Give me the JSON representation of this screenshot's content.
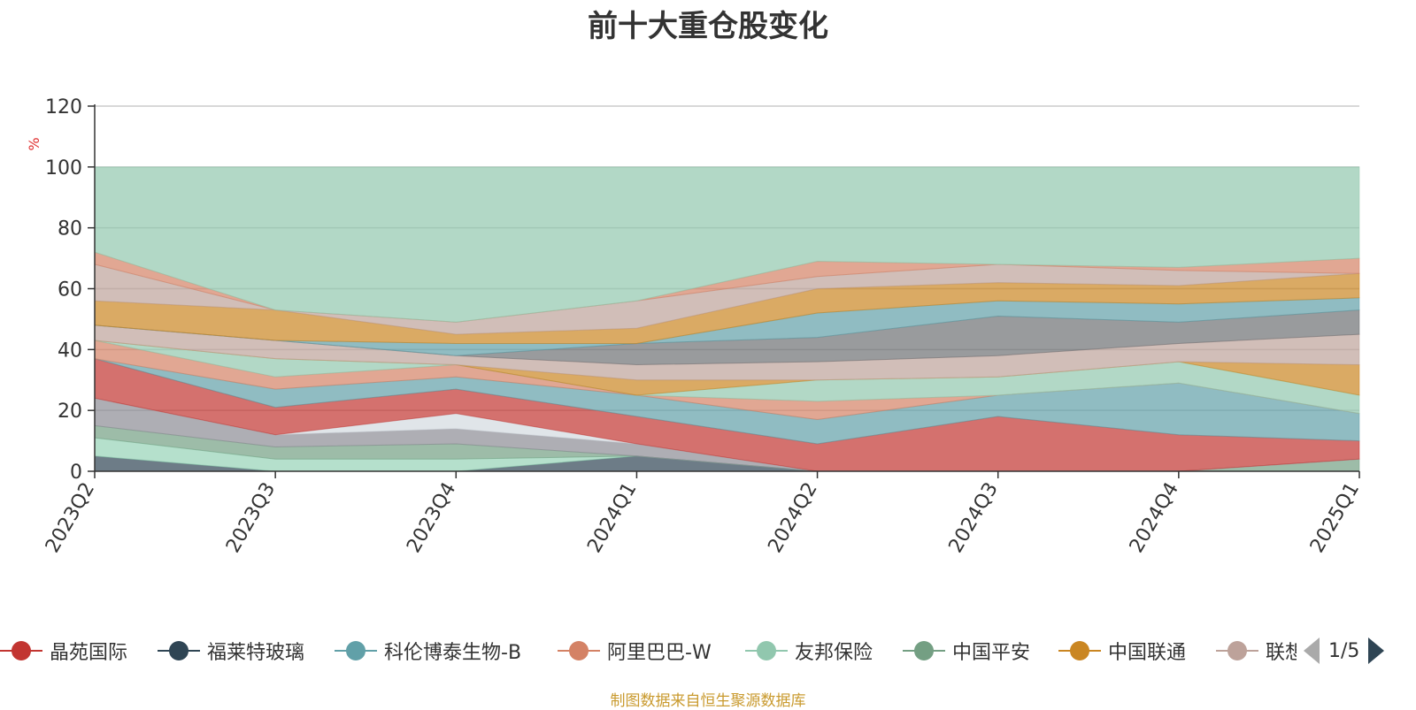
{
  "chart_data": {
    "type": "area",
    "title": "前十大重仓股变化",
    "ylabel": "%",
    "ylim": [
      0,
      120
    ],
    "yticks": [
      0,
      20,
      40,
      60,
      80,
      100,
      120
    ],
    "x": [
      "2023Q2",
      "2023Q3",
      "2023Q4",
      "2024Q1",
      "2024Q2",
      "2024Q3",
      "2024Q4",
      "2025Q1"
    ],
    "grid": true,
    "legend_position": "bottom",
    "bands": [
      {
        "color": "#2f4554",
        "upper": [
          5,
          0,
          0,
          5,
          0,
          0,
          0,
          0
        ]
      },
      {
        "color": "#95d3b6",
        "upper": [
          11,
          4,
          4,
          5,
          0,
          0,
          0,
          0
        ]
      },
      {
        "color": "#749f83",
        "upper": [
          15,
          8,
          9,
          5,
          0,
          0,
          0,
          4
        ]
      },
      {
        "color": "#8b8c94",
        "upper": [
          24,
          12,
          14,
          9,
          0,
          0,
          0,
          4
        ]
      },
      {
        "color": "#d3dae0",
        "upper": [
          24,
          12,
          19,
          9,
          0,
          0,
          0,
          4
        ]
      },
      {
        "color": "#c23531",
        "upper": [
          37,
          21,
          27,
          18,
          9,
          18,
          12,
          10
        ]
      },
      {
        "color": "#61a0a8",
        "upper": [
          37,
          27,
          31,
          25,
          17,
          25,
          29,
          19
        ]
      },
      {
        "color": "#d48265",
        "upper": [
          43,
          31,
          35,
          25,
          23,
          25,
          29,
          19
        ]
      },
      {
        "color": "#91c7ae",
        "upper": [
          43,
          37,
          35,
          25,
          30,
          31,
          36,
          25
        ]
      },
      {
        "color": "#ca8622",
        "upper": [
          43,
          37,
          35,
          30,
          30,
          31,
          36,
          35
        ]
      },
      {
        "color": "#bda29a",
        "upper": [
          48,
          43,
          38,
          35,
          36,
          38,
          42,
          45
        ]
      },
      {
        "color": "#6e7074",
        "upper": [
          48,
          43,
          38,
          42,
          44,
          51,
          49,
          53
        ]
      },
      {
        "color": "#61a0a8",
        "upper": [
          48,
          43,
          42,
          42,
          52,
          56,
          55,
          57
        ]
      },
      {
        "color": "#ca8622",
        "upper": [
          56,
          53,
          45,
          47,
          60,
          62,
          61,
          65
        ]
      },
      {
        "color": "#bda29a",
        "upper": [
          68,
          53,
          49,
          56,
          64,
          68,
          66,
          65
        ]
      },
      {
        "color": "#d48265",
        "upper": [
          72,
          53,
          49,
          56,
          69,
          68,
          67,
          70
        ]
      },
      {
        "color": "#91c7ae",
        "upper": [
          100,
          100,
          100,
          100,
          100,
          100,
          100,
          100
        ]
      }
    ]
  },
  "legend": {
    "items": [
      {
        "name": "晶苑国际",
        "color": "#c23531"
      },
      {
        "name": "福莱特玻璃",
        "color": "#2f4554"
      },
      {
        "name": "科伦博泰生物-B",
        "color": "#61a0a8"
      },
      {
        "name": "阿里巴巴-W",
        "color": "#d48265"
      },
      {
        "name": "友邦保险",
        "color": "#91c7ae"
      },
      {
        "name": "中国平安",
        "color": "#749f83"
      },
      {
        "name": "中国联通",
        "color": "#ca8622"
      },
      {
        "name": "联想",
        "color": "#bda29a"
      }
    ],
    "page_text": "1/5"
  },
  "source_note": "制图数据来自恒生聚源数据库"
}
